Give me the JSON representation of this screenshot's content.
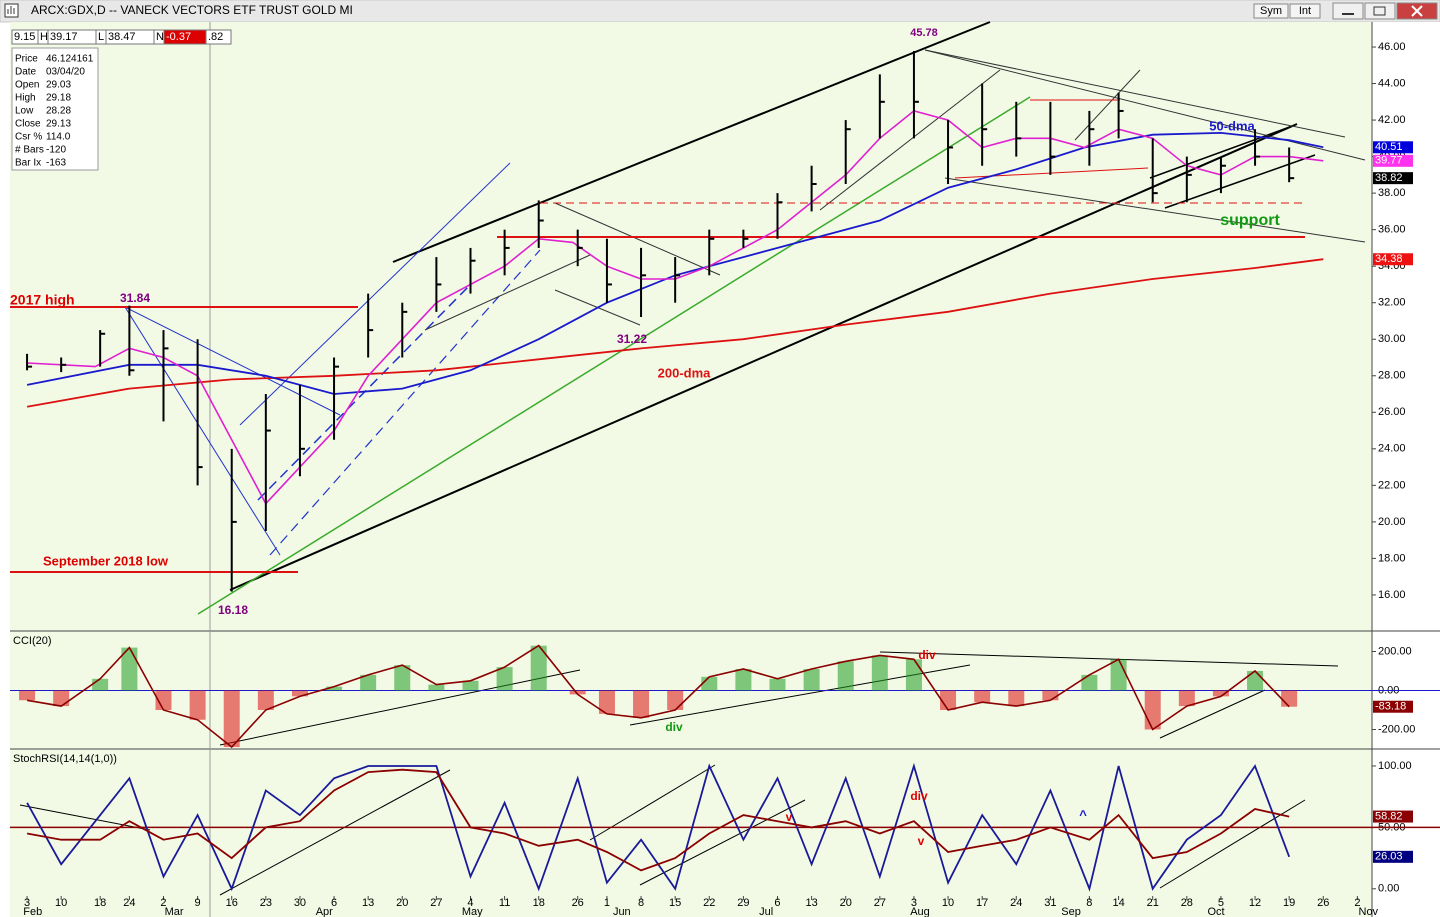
{
  "window": {
    "buttons": [
      "Sym",
      "Int"
    ],
    "fields": [
      "9.15",
      "H",
      "39.17",
      "L",
      "38.47",
      "N",
      "-0.37",
      ".82"
    ],
    "info": [
      [
        "Price",
        "46.124161"
      ],
      [
        "Date",
        "03/04/20"
      ],
      [
        "Open",
        "29.03"
      ],
      [
        "High",
        "29.18"
      ],
      [
        "Low",
        "28.28"
      ],
      [
        "Close",
        "29.13"
      ],
      [
        "Csr %",
        "114.0"
      ],
      [
        "# Bars",
        "-120"
      ],
      [
        "Bar Ix",
        "-163"
      ]
    ]
  },
  "chart_data": [
    {
      "type": "ohlc",
      "title": "ARCX:GDX,D -- VANECK VECTORS ETF TRUST GOLD MI",
      "color": "#000000",
      "x": [
        0,
        7,
        15,
        21,
        28,
        35,
        42,
        49,
        56,
        63,
        70,
        77,
        84,
        91,
        98,
        105,
        113,
        119,
        126,
        133,
        140,
        147,
        154,
        161,
        168,
        175,
        182,
        189,
        196,
        203,
        210,
        218,
        224,
        231,
        238,
        245,
        252,
        259
      ],
      "high": [
        29.2,
        29.0,
        30.5,
        31.84,
        30.5,
        30.0,
        24.0,
        27.0,
        27.5,
        29.0,
        32.5,
        32.0,
        34.5,
        35.0,
        36.0,
        37.6,
        36.0,
        35.5,
        35.0,
        34.5,
        36.0,
        36.0,
        38.0,
        39.5,
        42.0,
        44.5,
        45.78,
        42.0,
        44.0,
        43.0,
        43.0,
        42.5,
        43.5,
        41.0,
        40.0,
        40.0,
        41.5,
        40.5
      ],
      "low": [
        28.3,
        28.2,
        28.5,
        28.0,
        25.5,
        22.0,
        16.18,
        19.5,
        22.5,
        24.5,
        29.0,
        29.0,
        31.5,
        32.5,
        33.5,
        35.0,
        34.0,
        32.0,
        31.22,
        32.0,
        33.5,
        35.0,
        35.5,
        37.0,
        38.5,
        41.0,
        41.0,
        38.5,
        39.5,
        40.0,
        39.0,
        39.5,
        41.0,
        37.5,
        37.5,
        38.0,
        39.5,
        38.6
      ],
      "close": [
        28.5,
        28.6,
        30.3,
        28.3,
        29.5,
        23.0,
        20.0,
        25.0,
        24.0,
        28.5,
        30.5,
        31.5,
        33.0,
        34.3,
        35.0,
        36.5,
        35.0,
        33.0,
        33.5,
        33.5,
        35.5,
        35.5,
        37.5,
        38.5,
        41.5,
        43.0,
        43.0,
        40.5,
        41.5,
        41.0,
        40.0,
        41.5,
        42.5,
        38.0,
        39.0,
        39.5,
        40.0,
        38.82
      ],
      "series": [
        {
          "name": "200-dma",
          "color": "#dd1111",
          "x": [
            0,
            21,
            42,
            63,
            84,
            105,
            126,
            147,
            168,
            189,
            210,
            231,
            252,
            266
          ],
          "values": [
            26.3,
            27.3,
            27.8,
            28.0,
            28.3,
            28.9,
            29.5,
            30.0,
            30.8,
            31.5,
            32.5,
            33.3,
            33.9,
            34.38
          ]
        },
        {
          "name": "50-dma",
          "color": "#1a1acc",
          "x": [
            0,
            21,
            35,
            49,
            63,
            77,
            91,
            105,
            119,
            133,
            147,
            161,
            175,
            189,
            203,
            217,
            231,
            245,
            259,
            266
          ],
          "values": [
            27.5,
            28.6,
            28.6,
            28.0,
            27.0,
            27.3,
            28.3,
            30.0,
            32.0,
            33.5,
            34.5,
            35.5,
            36.5,
            38.3,
            39.3,
            40.5,
            41.2,
            41.3,
            40.9,
            40.51
          ]
        },
        {
          "color": "#e020d0",
          "x": [
            0,
            14,
            21,
            28,
            35,
            42,
            49,
            56,
            63,
            70,
            77,
            84,
            91,
            98,
            105,
            112,
            119,
            126,
            133,
            140,
            147,
            154,
            161,
            168,
            175,
            182,
            189,
            196,
            203,
            210,
            217,
            224,
            231,
            238,
            245,
            252,
            259,
            266
          ],
          "values": [
            28.7,
            28.5,
            29.5,
            29,
            28,
            24.5,
            21,
            23,
            25,
            28,
            30,
            32,
            33,
            34,
            35.5,
            35.3,
            34,
            33.3,
            33.3,
            34,
            35,
            36,
            37.5,
            39,
            41,
            42.5,
            42,
            40.5,
            41,
            41,
            40.5,
            41.5,
            41,
            39.5,
            39,
            40,
            40,
            39.77
          ]
        }
      ],
      "badges": [
        {
          "value": 40.51,
          "color": "#0000dd"
        },
        {
          "value": 39.77,
          "color": "#ff33ee"
        },
        {
          "value": 38.82,
          "color": "#000000"
        },
        {
          "value": 34.38,
          "color": "#ee1111"
        }
      ],
      "annotations": [
        {
          "text": "2017 high",
          "color": "#dd0000"
        },
        {
          "text": "31.84",
          "color": "#800080"
        },
        {
          "text": "September 2018 low",
          "color": "#dd0000"
        },
        {
          "text": "16.18",
          "color": "#800080"
        },
        {
          "text": "31.22",
          "color": "#800080"
        },
        {
          "text": "45.78",
          "color": "#800080"
        },
        {
          "text": "support",
          "color": "#119911"
        }
      ],
      "xlim": [
        -3.5,
        276
      ],
      "ylim": [
        14.08,
        47.37
      ],
      "yticks": [
        {
          "value": 16,
          "label": "16.00"
        },
        {
          "value": 18,
          "label": "18.00"
        },
        {
          "value": 20,
          "label": "20.00"
        },
        {
          "value": 22,
          "label": "22.00"
        },
        {
          "value": 24,
          "label": "24.00"
        },
        {
          "value": 26,
          "label": "26.00"
        },
        {
          "value": 28,
          "label": "28.00"
        },
        {
          "value": 30,
          "label": "30.00"
        },
        {
          "value": 32,
          "label": "32.00"
        },
        {
          "value": 34,
          "label": "34.00"
        },
        {
          "value": 36,
          "label": "36.00"
        },
        {
          "value": 38,
          "label": "38.00"
        },
        {
          "value": 40,
          "label": "40.00"
        },
        {
          "value": 42,
          "label": "42.00"
        },
        {
          "value": 44,
          "label": "44.00"
        },
        {
          "value": 46,
          "label": "46.00"
        }
      ]
    },
    {
      "type": "histogram-line",
      "title": "CCI(20)",
      "color": "#8b0000",
      "up_color": "#1f9a1f",
      "down_color": "#dd1111",
      "reference": 0,
      "x": [
        0,
        7,
        15,
        21,
        28,
        35,
        42,
        49,
        56,
        63,
        70,
        77,
        84,
        91,
        98,
        105,
        113,
        119,
        126,
        133,
        140,
        147,
        154,
        161,
        168,
        175,
        182,
        189,
        196,
        203,
        210,
        218,
        224,
        231,
        238,
        245,
        252,
        259
      ],
      "values": [
        -50,
        -80,
        60,
        220,
        -100,
        -150,
        -290,
        -100,
        -30,
        20,
        80,
        130,
        30,
        50,
        120,
        230,
        -20,
        -120,
        -140,
        -100,
        70,
        110,
        60,
        110,
        150,
        180,
        160,
        -100,
        -60,
        -80,
        -50,
        80,
        160,
        -200,
        -80,
        -30,
        100,
        -83.18
      ],
      "badges": [
        {
          "value": -83.18,
          "color": "#8b0000"
        }
      ],
      "annotations": [
        {
          "text": "div",
          "color": "#dd0000"
        },
        {
          "text": "div",
          "color": "#119911"
        }
      ],
      "xlim": [
        -3.5,
        276
      ],
      "ylim": [
        -300,
        300
      ],
      "yticks": [
        {
          "value": -200,
          "label": "-200.00"
        },
        {
          "value": 0,
          "label": "0.00"
        },
        {
          "value": 200,
          "label": "200.00"
        }
      ]
    },
    {
      "type": "line",
      "title": "StochRSI(14,14(1,0))",
      "reference": 50,
      "reference_color": "#8b0000",
      "x": [
        0,
        7,
        15,
        21,
        28,
        35,
        42,
        49,
        56,
        63,
        70,
        77,
        84,
        91,
        98,
        105,
        113,
        119,
        126,
        133,
        140,
        147,
        154,
        161,
        168,
        175,
        182,
        189,
        196,
        203,
        210,
        218,
        224,
        231,
        238,
        245,
        252,
        259
      ],
      "series": [
        {
          "color": "#1a1a99",
          "values": [
            70,
            20,
            60,
            90,
            10,
            60,
            0,
            80,
            60,
            90,
            100,
            100,
            100,
            10,
            70,
            0,
            90,
            5,
            40,
            0,
            100,
            40,
            90,
            20,
            90,
            10,
            100,
            5,
            60,
            20,
            80,
            0,
            100,
            0,
            40,
            60,
            100,
            26.03
          ]
        },
        {
          "color": "#8b0000",
          "values": [
            45,
            40,
            40,
            55,
            40,
            45,
            25,
            50,
            55,
            80,
            95,
            97,
            95,
            50,
            45,
            35,
            40,
            30,
            15,
            25,
            45,
            60,
            55,
            50,
            55,
            45,
            55,
            30,
            35,
            40,
            50,
            40,
            60,
            25,
            30,
            45,
            65,
            58.82
          ]
        }
      ],
      "badges": [
        {
          "value": 58.82,
          "color": "#8b0000"
        },
        {
          "value": 26.03,
          "color": "#000080"
        }
      ],
      "annotations": [
        {
          "text": "div",
          "color": "#dd0000"
        },
        {
          "text": "v",
          "color": "#dd0000"
        },
        {
          "text": "v",
          "color": "#dd0000"
        },
        {
          "text": "^",
          "color": "#1a1acc"
        }
      ],
      "xlim": [
        -3.5,
        276
      ],
      "ylim": [
        -14,
        113
      ],
      "yticks": [
        {
          "value": 0,
          "label": "0.00"
        },
        {
          "value": 50,
          "label": "50.00"
        },
        {
          "value": 100,
          "label": "100.00"
        }
      ],
      "xticks": [
        {
          "value": 0,
          "label": "3"
        },
        {
          "value": 7,
          "label": "10"
        },
        {
          "value": 15,
          "label": "18"
        },
        {
          "value": 21,
          "label": "24"
        },
        {
          "value": 28,
          "label": "2"
        },
        {
          "value": 35,
          "label": "9"
        },
        {
          "value": 42,
          "label": "16"
        },
        {
          "value": 49,
          "label": "23"
        },
        {
          "value": 56,
          "label": "30"
        },
        {
          "value": 63,
          "label": "6"
        },
        {
          "value": 70,
          "label": "13"
        },
        {
          "value": 77,
          "label": "20"
        },
        {
          "value": 84,
          "label": "27"
        },
        {
          "value": 91,
          "label": "4"
        },
        {
          "value": 98,
          "label": "11"
        },
        {
          "value": 105,
          "label": "18"
        },
        {
          "value": 113,
          "label": "26"
        },
        {
          "value": 119,
          "label": "1"
        },
        {
          "value": 126,
          "label": "8"
        },
        {
          "value": 133,
          "label": "15"
        },
        {
          "value": 140,
          "label": "22"
        },
        {
          "value": 147,
          "label": "29"
        },
        {
          "value": 154,
          "label": "6"
        },
        {
          "value": 161,
          "label": "13"
        },
        {
          "value": 168,
          "label": "20"
        },
        {
          "value": 175,
          "label": "27"
        },
        {
          "value": 182,
          "label": "3"
        },
        {
          "value": 189,
          "label": "10"
        },
        {
          "value": 196,
          "label": "17"
        },
        {
          "value": 203,
          "label": "24"
        },
        {
          "value": 210,
          "label": "31"
        },
        {
          "value": 218,
          "label": "8"
        },
        {
          "value": 224,
          "label": "14"
        },
        {
          "value": 231,
          "label": "21"
        },
        {
          "value": 238,
          "label": "28"
        },
        {
          "value": 245,
          "label": "5"
        },
        {
          "value": 252,
          "label": "12"
        },
        {
          "value": 259,
          "label": "19"
        },
        {
          "value": 266,
          "label": "26"
        },
        {
          "value": 273,
          "label": "2"
        }
      ],
      "months": [
        {
          "value": -2,
          "label": "Feb"
        },
        {
          "value": 27,
          "label": "Mar"
        },
        {
          "value": 58,
          "label": "Apr"
        },
        {
          "value": 88,
          "label": "May"
        },
        {
          "value": 119,
          "label": "Jun"
        },
        {
          "value": 149,
          "label": "Jul"
        },
        {
          "value": 180,
          "label": "Aug"
        },
        {
          "value": 211,
          "label": "Sep"
        },
        {
          "value": 241,
          "label": "Oct"
        },
        {
          "value": 272,
          "label": "Nov"
        }
      ]
    }
  ]
}
